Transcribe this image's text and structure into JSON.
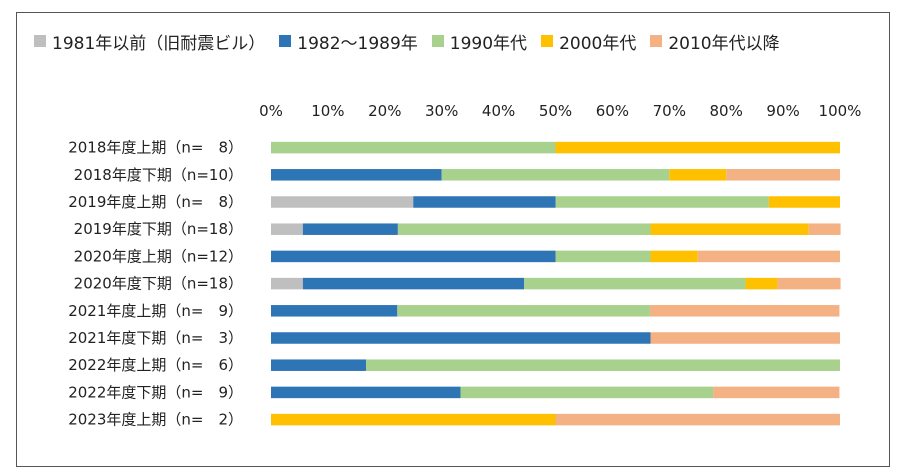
{
  "chart_data": {
    "type": "bar",
    "orientation": "horizontal",
    "stacked": true,
    "title": "",
    "xlabel": "",
    "ylabel": "",
    "xlim": [
      0,
      100
    ],
    "x_ticks": [
      "0%",
      "10%",
      "20%",
      "30%",
      "40%",
      "50%",
      "60%",
      "70%",
      "80%",
      "90%",
      "100%"
    ],
    "x_tick_values": [
      0,
      10,
      20,
      30,
      40,
      50,
      60,
      70,
      80,
      90,
      100
    ],
    "grid": false,
    "legend_position": "top",
    "categories": [
      "2018年度上期（n=　8）",
      "2018年度下期（n=10）",
      "2019年度上期（n=　8）",
      "2019年度下期（n=18）",
      "2020年度上期（n=12）",
      "2020年度下期（n=18）",
      "2021年度上期（n=　9）",
      "2021年度下期（n=　3）",
      "2022年度上期（n=　6）",
      "2022年度下期（n=　9）",
      "2023年度上期（n=　2）"
    ],
    "series": [
      {
        "name": "1981年以前（旧耐震ビル）",
        "color": "#bfbfbf",
        "values": [
          0,
          0,
          25,
          5.6,
          0,
          5.6,
          0,
          0,
          0,
          0,
          0
        ]
      },
      {
        "name": "1982～1989年",
        "color": "#2e75b6",
        "values": [
          0,
          30,
          25,
          16.7,
          50,
          38.9,
          22.2,
          66.7,
          16.7,
          33.3,
          0
        ]
      },
      {
        "name": "1990年代",
        "color": "#a9d18e",
        "values": [
          50,
          40,
          37.5,
          44.4,
          16.7,
          38.9,
          44.4,
          0,
          83.3,
          44.4,
          0
        ]
      },
      {
        "name": "2000年代",
        "color": "#ffc000",
        "values": [
          50,
          10,
          12.5,
          27.8,
          8.3,
          5.6,
          0,
          0,
          0,
          0,
          50
        ]
      },
      {
        "name": "2010年代以降",
        "color": "#f4b183",
        "values": [
          0,
          20,
          0,
          5.6,
          25,
          11.1,
          33.3,
          33.3,
          0,
          22.2,
          50
        ]
      }
    ]
  }
}
